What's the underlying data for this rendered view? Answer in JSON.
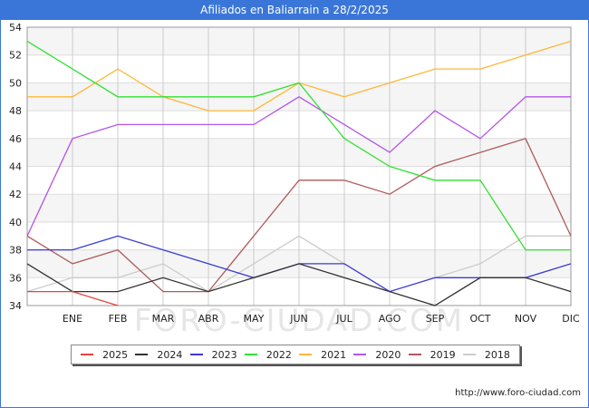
{
  "title": "Afiliados en Baliarrain a 28/2/2025",
  "footer": "http://www.foro-ciudad.com",
  "watermark": "FORO-CIUDAD.COM",
  "chart_data": {
    "type": "line",
    "categories": [
      "",
      "ENE",
      "FEB",
      "MAR",
      "ABR",
      "MAY",
      "JUN",
      "JUL",
      "AGO",
      "SEP",
      "OCT",
      "NOV",
      "DIC"
    ],
    "ylim": [
      34,
      54
    ],
    "yticks": [
      34,
      36,
      38,
      40,
      42,
      44,
      46,
      48,
      50,
      52,
      54
    ],
    "grid": true,
    "legend_position": "bottom",
    "series": [
      {
        "name": "2025",
        "color": "#e8443a",
        "values": [
          35,
          35,
          34,
          null,
          null,
          null,
          null,
          null,
          null,
          null,
          null,
          null,
          null
        ]
      },
      {
        "name": "2024",
        "color": "#333333",
        "values": [
          37,
          35,
          35,
          36,
          35,
          36,
          37,
          36,
          35,
          34,
          36,
          36,
          35
        ]
      },
      {
        "name": "2023",
        "color": "#3b3bd6",
        "values": [
          38,
          38,
          39,
          38,
          37,
          36,
          37,
          37,
          35,
          36,
          36,
          36,
          37
        ]
      },
      {
        "name": "2022",
        "color": "#33e033",
        "values": [
          53,
          51,
          49,
          49,
          49,
          49,
          50,
          46,
          44,
          43,
          43,
          38,
          38
        ]
      },
      {
        "name": "2021",
        "color": "#ffb636",
        "values": [
          49,
          49,
          51,
          49,
          48,
          48,
          50,
          49,
          50,
          51,
          51,
          52,
          53
        ]
      },
      {
        "name": "2020",
        "color": "#b455e6",
        "values": [
          39,
          46,
          47,
          47,
          47,
          47,
          49,
          47,
          45,
          48,
          46,
          49,
          49
        ]
      },
      {
        "name": "2019",
        "color": "#b05a5a",
        "values": [
          39,
          37,
          38,
          35,
          35,
          39,
          43,
          43,
          42,
          44,
          45,
          46,
          39
        ]
      },
      {
        "name": "2018",
        "color": "#cccccc",
        "values": [
          35,
          36,
          36,
          37,
          35,
          37,
          39,
          37,
          35,
          36,
          37,
          39,
          39
        ]
      }
    ]
  }
}
